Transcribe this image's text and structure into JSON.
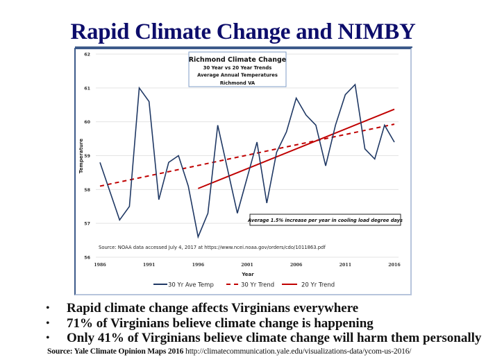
{
  "slide": {
    "title": "Rapid Climate Change and NIMBY",
    "bullets": [
      "Rapid climate change affects Virginians everywhere",
      "71% of Virginians believe climate change is happening",
      "Only 41% of Virginians believe climate change will harm them personally"
    ],
    "source_label": "Source:  Yale Climate Opinion Maps 2016",
    "source_url": "http://climatecommunication.yale.edu/visualizations-data/ycom-us-2016/",
    "colors": {
      "title": "#0d0d6b",
      "temp_line": "#1f3864",
      "trend": "#c00000"
    }
  },
  "chart_data": {
    "type": "line",
    "title": "Richmond Climate Change",
    "subtitle_lines": [
      "30 Year vs 20 Year Trends",
      "Average Annual Temperatures",
      "Richmond VA"
    ],
    "xlabel": "Year",
    "ylabel": "Temperature",
    "xlim": [
      1986,
      2016
    ],
    "ylim": [
      56,
      62
    ],
    "x_ticks": [
      1986,
      1991,
      1996,
      2001,
      2006,
      2011,
      2016
    ],
    "y_ticks": [
      56,
      57,
      58,
      59,
      60,
      61,
      62
    ],
    "grid": "horizontal",
    "legend_position": "bottom",
    "annotation": "Average 1.5% increase per year in cooling load degree days",
    "source_note": "Source:  NOAA data accessed July 4, 2017 at https://www.ncei.noaa.gov/orders/cdo/1011863.pdf",
    "x": [
      1986,
      1987,
      1988,
      1989,
      1990,
      1991,
      1992,
      1993,
      1994,
      1995,
      1996,
      1997,
      1998,
      1999,
      2000,
      2001,
      2002,
      2003,
      2004,
      2005,
      2006,
      2007,
      2008,
      2009,
      2010,
      2011,
      2012,
      2013,
      2014,
      2015,
      2016
    ],
    "series": [
      {
        "name": "30 Yr Ave Temp",
        "style": "solid",
        "color": "#1f3864",
        "values": [
          58.8,
          57.95,
          57.1,
          57.5,
          61.0,
          60.6,
          57.7,
          58.8,
          59.0,
          58.1,
          56.6,
          57.3,
          59.9,
          58.6,
          57.3,
          58.35,
          59.4,
          57.6,
          59.1,
          59.7,
          60.7,
          60.2,
          59.9,
          58.7,
          59.9,
          60.8,
          61.1,
          59.2,
          58.9,
          59.9,
          59.4
        ]
      },
      {
        "name": "30 Yr Trend",
        "style": "dashed",
        "color": "#c00000",
        "x": [
          1986,
          2016
        ],
        "values": [
          58.1,
          59.93
        ]
      },
      {
        "name": "20 Yr Trend",
        "style": "solid",
        "color": "#c00000",
        "x": [
          1996,
          2016
        ],
        "values": [
          58.03,
          60.37
        ]
      }
    ]
  }
}
